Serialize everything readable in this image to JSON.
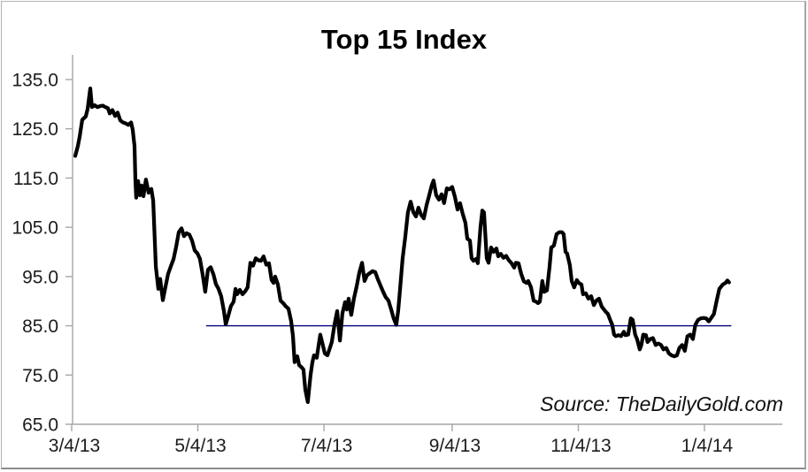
{
  "chart_data": {
    "type": "line",
    "title": "Top 15 Index",
    "source_note": "Source: TheDailyGold.com",
    "xlabel": "",
    "ylabel": "",
    "ylim": [
      65.0,
      135.0
    ],
    "grid": false,
    "legend": "none",
    "x_axis": {
      "tick_labels": [
        "3/4/13",
        "5/4/13",
        "7/4/13",
        "9/4/13",
        "11/4/13",
        "1/4/14"
      ],
      "tick_days": [
        0,
        61,
        122,
        184,
        245,
        306
      ],
      "total_days_shown": 345
    },
    "y_axis": {
      "ticks": [
        135.0,
        125.0,
        115.0,
        105.0,
        95.0,
        85.0,
        75.0,
        65.0
      ],
      "tick_labels": [
        "135.0",
        "125.0",
        "115.0",
        "105.0",
        "95.0",
        "85.0",
        "75.0",
        "65.0"
      ]
    },
    "reference_lines": [
      {
        "value": 85.0,
        "color": "#000080",
        "x_start_day": 65,
        "x_end_day": 319
      }
    ],
    "series": [
      {
        "name": "Top 15 Index",
        "color": "#000000",
        "x_days": [
          1.7,
          3.0,
          3.9,
          5.1,
          6.0,
          6.8,
          7.7,
          9.0,
          9.8,
          11.1,
          12.4,
          13.7,
          15.0,
          16.3,
          17.5,
          18.4,
          19.7,
          21.0,
          22.2,
          23.5,
          24.8,
          26.1,
          27.4,
          28.7,
          29.5,
          30.4,
          30.8,
          31.2,
          32.1,
          33.0,
          33.8,
          34.7,
          35.9,
          37.2,
          38.5,
          39.4,
          40.7,
          41.9,
          42.8,
          44.1,
          45.4,
          46.6,
          47.9,
          49.2,
          50.5,
          51.8,
          53.1,
          54.3,
          55.6,
          56.9,
          58.2,
          59.5,
          60.8,
          62.0,
          63.3,
          64.6,
          65.9,
          67.2,
          68.5,
          69.7,
          71.0,
          72.3,
          73.6,
          74.5,
          75.7,
          77.0,
          78.3,
          79.2,
          80.0,
          81.3,
          82.6,
          83.9,
          85.1,
          86.4,
          87.7,
          89.0,
          90.3,
          91.6,
          92.8,
          94.1,
          95.4,
          96.7,
          97.6,
          98.4,
          99.7,
          101.0,
          102.3,
          103.6,
          104.8,
          106.1,
          107.0,
          107.8,
          109.1,
          110.0,
          111.3,
          112.1,
          113.0,
          114.2,
          115.5,
          116.4,
          117.2,
          118.5,
          119.4,
          120.2,
          121.5,
          122.4,
          123.7,
          124.9,
          125.8,
          127.1,
          128.4,
          129.7,
          130.9,
          132.2,
          133.1,
          133.9,
          135.2,
          136.5,
          137.8,
          139.1,
          140.4,
          141.6,
          142.9,
          144.2,
          145.5,
          146.8,
          148.0,
          149.3,
          150.6,
          151.9,
          153.2,
          154.5,
          155.7,
          157.0,
          157.9,
          158.7,
          160.0,
          161.3,
          162.6,
          163.9,
          165.2,
          166.5,
          167.7,
          169.0,
          170.3,
          171.6,
          172.9,
          174.1,
          175.0,
          176.3,
          177.6,
          178.9,
          180.1,
          181.4,
          182.7,
          184.0,
          185.3,
          186.6,
          187.8,
          189.1,
          190.4,
          191.3,
          192.6,
          193.4,
          194.3,
          195.6,
          196.4,
          197.7,
          198.6,
          199.4,
          200.7,
          201.6,
          202.8,
          204.1,
          205.4,
          206.3,
          207.5,
          208.8,
          210.1,
          211.4,
          212.7,
          214.0,
          214.8,
          216.1,
          217.4,
          218.7,
          220.0,
          220.8,
          222.1,
          223.4,
          224.6,
          225.5,
          226.4,
          227.6,
          228.5,
          229.8,
          231.1,
          231.9,
          233.2,
          234.5,
          235.8,
          237.1,
          237.9,
          238.8,
          239.6,
          240.9,
          241.8,
          243.0,
          244.3,
          245.2,
          246.5,
          247.3,
          248.6,
          249.9,
          251.2,
          252.5,
          253.7,
          255.0,
          256.3,
          258.0,
          259.3,
          260.6,
          261.4,
          262.3,
          263.1,
          264.4,
          265.7,
          267.0,
          267.8,
          269.1,
          270.4,
          271.3,
          272.5,
          273.4,
          274.7,
          275.5,
          276.4,
          277.7,
          278.5,
          279.8,
          281.1,
          282.4,
          283.7,
          285.0,
          286.2,
          287.5,
          288.8,
          290.1,
          291.4,
          292.7,
          293.9,
          295.2,
          296.5,
          297.8,
          299.1,
          300.4,
          301.6,
          302.9,
          304.2,
          305.5,
          306.8,
          308.1,
          309.3,
          310.6,
          311.9,
          313.2,
          314.9,
          316.2,
          317.1,
          317.9
        ],
        "values": [
          119.5,
          121.5,
          123.5,
          126.8,
          127.2,
          127.5,
          129.0,
          133.2,
          129.4,
          129.8,
          129.4,
          129.6,
          129.7,
          129.4,
          129.2,
          128.1,
          128.8,
          127.6,
          128.3,
          126.7,
          126.3,
          126.1,
          125.8,
          126.3,
          124.9,
          121.5,
          114.5,
          111.0,
          114.4,
          111.5,
          113.5,
          111.3,
          114.7,
          112.0,
          112.8,
          110.4,
          97.0,
          92.5,
          94.5,
          90.2,
          93.0,
          95.5,
          97.0,
          98.5,
          101.0,
          104.0,
          104.8,
          103.2,
          103.8,
          103.5,
          102.3,
          100.3,
          99.7,
          98.6,
          95.5,
          91.9,
          96.4,
          96.9,
          95.5,
          93.5,
          92.5,
          91.0,
          88.0,
          85.3,
          87.0,
          89.0,
          89.9,
          92.5,
          91.4,
          92.3,
          91.4,
          92.0,
          92.8,
          97.8,
          97.2,
          98.7,
          98.3,
          98.2,
          99.1,
          97.4,
          97.7,
          94.3,
          93.7,
          95.0,
          93.4,
          90.1,
          89.6,
          88.9,
          88.5,
          86.0,
          83.0,
          77.6,
          78.8,
          77.0,
          76.5,
          76.1,
          72.0,
          69.5,
          75.0,
          77.6,
          79.0,
          78.5,
          81.0,
          83.2,
          81.0,
          79.4,
          79.0,
          80.5,
          81.7,
          85.3,
          88.0,
          82.0,
          87.5,
          89.8,
          88.3,
          90.5,
          87.2,
          90.5,
          93.0,
          95.8,
          97.8,
          94.1,
          95.3,
          95.7,
          96.1,
          95.9,
          94.5,
          93.2,
          91.9,
          90.8,
          90.1,
          88.3,
          86.5,
          85.2,
          88.0,
          91.9,
          98.6,
          103.0,
          108.0,
          110.2,
          108.1,
          107.2,
          109.0,
          107.5,
          106.8,
          109.5,
          111.5,
          113.5,
          114.5,
          111.5,
          110.6,
          111.7,
          109.9,
          112.9,
          112.7,
          113.2,
          111.2,
          108.6,
          109.9,
          107.7,
          105.9,
          102.7,
          102.3,
          98.7,
          98.2,
          98.6,
          97.7,
          105.0,
          108.4,
          108.0,
          98.7,
          97.8,
          100.9,
          100.0,
          100.7,
          99.1,
          99.6,
          98.8,
          99.2,
          98.3,
          97.7,
          96.8,
          97.8,
          97.7,
          95.5,
          94.0,
          93.7,
          94.1,
          92.8,
          90.1,
          89.9,
          89.6,
          89.9,
          94.1,
          91.9,
          92.2,
          97.0,
          100.9,
          101.3,
          103.6,
          104.0,
          104.0,
          103.6,
          100.0,
          99.7,
          97.3,
          94.1,
          92.8,
          94.3,
          93.7,
          93.4,
          91.4,
          91.6,
          90.5,
          91.0,
          89.2,
          90.1,
          90.5,
          88.9,
          88.0,
          87.4,
          86.0,
          85.2,
          83.2,
          82.9,
          83.1,
          82.9,
          83.8,
          83.1,
          83.2,
          86.5,
          86.2,
          83.2,
          82.3,
          80.2,
          81.1,
          83.2,
          83.1,
          81.7,
          82.3,
          82.5,
          81.1,
          81.4,
          81.1,
          80.2,
          80.5,
          79.4,
          79.0,
          78.8,
          79.0,
          80.5,
          81.1,
          79.9,
          82.9,
          83.2,
          82.3,
          85.2,
          86.2,
          86.5,
          86.6,
          86.5,
          85.9,
          86.6,
          87.4,
          90.1,
          92.5,
          93.4,
          93.7,
          94.2,
          93.8
        ]
      }
    ]
  }
}
